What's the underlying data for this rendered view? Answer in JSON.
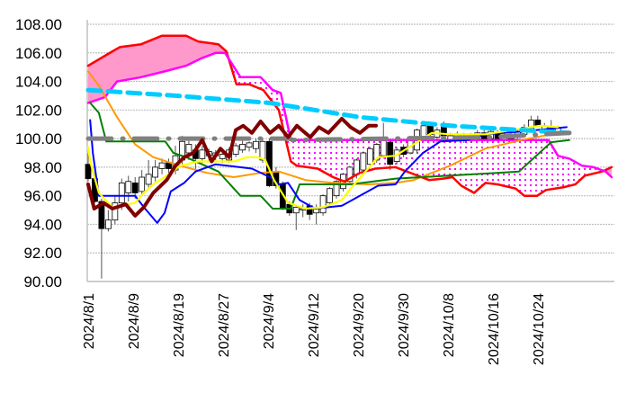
{
  "chart_data": {
    "type": "line",
    "title": "",
    "xlabel": "",
    "ylabel": "",
    "ylim": [
      90,
      108
    ],
    "xlim": [
      0,
      78.5
    ],
    "grid": true,
    "legend": "none",
    "y_ticks": [
      "90.00",
      "92.00",
      "94.00",
      "96.00",
      "98.00",
      "100.00",
      "102.00",
      "104.00",
      "106.00",
      "108.00"
    ],
    "y_tick_values": [
      90,
      92,
      94,
      96,
      98,
      100,
      102,
      104,
      106,
      108
    ],
    "x_tick_labels": [
      {
        "i": 0,
        "label": "2024/8/1"
      },
      {
        "i": 6.7,
        "label": "2024/8/9"
      },
      {
        "i": 13.4,
        "label": "2024/8/19"
      },
      {
        "i": 20.1,
        "label": "2024/8/27"
      },
      {
        "i": 26.8,
        "label": "2024/9/4"
      },
      {
        "i": 33.5,
        "label": "2024/9/12"
      },
      {
        "i": 40.2,
        "label": "2024/9/20"
      },
      {
        "i": 46.9,
        "label": "2024/9/30"
      },
      {
        "i": 53.6,
        "label": "2024/10/8"
      },
      {
        "i": 60.3,
        "label": "2024/10/16"
      },
      {
        "i": 67.0,
        "label": "2024/10/24"
      }
    ],
    "colors": {
      "senkou_a": "#ff0000",
      "senkou_b": "#ff00ff",
      "cloud_bull": "#ff99cc",
      "cloud_bear_dots": "#ff00ff",
      "tenkan": "#0000ff",
      "kijun": "#008000",
      "chikou": "#800000",
      "yellow": "#ffff00",
      "orange": "#ff9900",
      "cyan": "#00ccff",
      "gray": "#808080"
    },
    "candles": [
      [
        98.2,
        99.0,
        97.0,
        97.2
      ],
      [
        97.2,
        97.5,
        95.5,
        95.6
      ],
      [
        95.6,
        95.8,
        90.2,
        93.7
      ],
      [
        93.7,
        95.0,
        93.5,
        94.3
      ],
      [
        94.3,
        96.0,
        94.0,
        95.5
      ],
      [
        95.5,
        97.2,
        95.0,
        96.9
      ],
      [
        96.2,
        97.4,
        95.6,
        97.0
      ],
      [
        96.9,
        97.3,
        95.8,
        96.2
      ],
      [
        96.3,
        97.8,
        96.0,
        97.3
      ],
      [
        96.8,
        98.5,
        96.5,
        97.5
      ],
      [
        97.3,
        98.5,
        97.0,
        98.0
      ],
      [
        97.9,
        98.6,
        97.5,
        98.3
      ],
      [
        98.3,
        98.6,
        97.6,
        97.9
      ],
      [
        97.8,
        99.5,
        97.5,
        98.8
      ],
      [
        98.5,
        100.2,
        98.2,
        99.8
      ],
      [
        99.0,
        100.0,
        98.5,
        99.6
      ],
      [
        99.2,
        99.6,
        97.6,
        98.6
      ],
      [
        98.6,
        99.5,
        98.3,
        99.2
      ],
      [
        98.8,
        99.3,
        98.4,
        99.1
      ],
      [
        98.8,
        99.2,
        98.5,
        99.0
      ],
      [
        98.6,
        99.1,
        98.3,
        98.9
      ],
      [
        98.5,
        99.4,
        98.3,
        99.2
      ],
      [
        98.9,
        99.7,
        98.7,
        99.5
      ],
      [
        99.2,
        99.9,
        99.0,
        99.6
      ],
      [
        99.4,
        99.8,
        99.1,
        99.7
      ],
      [
        99.3,
        100.0,
        99.0,
        99.8
      ],
      [
        98.5,
        100.0,
        98.3,
        99.8
      ],
      [
        99.8,
        100.0,
        96.6,
        96.7
      ],
      [
        97.7,
        98.0,
        96.5,
        96.7
      ],
      [
        96.8,
        97.0,
        95.0,
        95.1
      ],
      [
        95.4,
        95.6,
        94.6,
        94.8
      ],
      [
        94.8,
        95.3,
        93.6,
        95.2
      ],
      [
        95.0,
        95.4,
        94.5,
        95.1
      ],
      [
        95.3,
        95.5,
        94.3,
        94.7
      ],
      [
        94.8,
        95.4,
        94.0,
        95.2
      ],
      [
        94.8,
        96.1,
        94.6,
        96.0
      ],
      [
        95.5,
        96.6,
        95.3,
        96.5
      ],
      [
        96.0,
        97.1,
        95.8,
        97.0
      ],
      [
        96.5,
        97.6,
        96.3,
        97.5
      ],
      [
        97.0,
        98.1,
        96.8,
        98.0
      ],
      [
        97.5,
        98.6,
        97.2,
        98.5
      ],
      [
        97.8,
        99.1,
        97.6,
        99.0
      ],
      [
        98.2,
        99.4,
        98.0,
        99.3
      ],
      [
        98.5,
        99.7,
        98.3,
        99.6
      ],
      [
        98.8,
        101.1,
        98.6,
        99.9
      ],
      [
        99.75,
        100.0,
        97.8,
        98.2
      ],
      [
        98.4,
        99.4,
        98.2,
        99.2
      ],
      [
        99.4,
        99.6,
        98.7,
        98.9
      ],
      [
        99.0,
        100.2,
        98.9,
        100.0
      ],
      [
        99.2,
        100.7,
        99.0,
        100.6
      ],
      [
        100.0,
        101.1,
        99.9,
        100.9
      ],
      [
        100.9,
        101.0,
        100.1,
        100.3
      ],
      [
        100.1,
        100.8,
        99.7,
        100.6
      ],
      [
        101.0,
        101.2,
        100.0,
        100.2
      ],
      [
        99.9,
        100.4,
        99.7,
        100.2
      ],
      [
        100.0,
        100.5,
        99.8,
        100.3
      ],
      [
        100.2,
        100.4,
        99.7,
        99.9
      ],
      [
        99.9,
        100.4,
        99.7,
        100.2
      ],
      [
        100.0,
        100.6,
        99.8,
        100.4
      ],
      [
        100.4,
        100.6,
        99.8,
        100.0
      ],
      [
        100.0,
        100.7,
        99.8,
        100.5
      ],
      [
        100.4,
        100.6,
        99.8,
        100.0
      ],
      [
        99.9,
        100.4,
        99.7,
        100.2
      ],
      [
        100.0,
        100.5,
        99.9,
        100.3
      ],
      [
        100.2,
        100.7,
        100.0,
        100.5
      ],
      [
        100.3,
        101.0,
        100.2,
        100.8
      ],
      [
        100.7,
        101.6,
        100.5,
        101.3
      ],
      [
        101.3,
        101.6,
        100.8,
        100.9
      ],
      [
        100.6,
        101.1,
        100.4,
        100.9
      ],
      [
        100.6,
        101.3,
        100.4,
        100.8
      ],
      [
        100.5,
        100.9,
        100.3,
        100.8
      ]
    ],
    "series": [
      {
        "name": "senkou_a",
        "color": "#ff0000",
        "width": 2.5,
        "points": [
          [
            0,
            105.1
          ],
          [
            2.5,
            105.8
          ],
          [
            4.7,
            106.4
          ],
          [
            7.9,
            106.6
          ],
          [
            11,
            107.2
          ],
          [
            14.6,
            107.2
          ],
          [
            16.4,
            106.8
          ],
          [
            19.4,
            106.6
          ],
          [
            20.6,
            106.1
          ],
          [
            22.1,
            103.8
          ],
          [
            24,
            103.8
          ],
          [
            26.1,
            103.4
          ],
          [
            28.4,
            102.0
          ],
          [
            30.2,
            98.4
          ],
          [
            31.1,
            98.1
          ],
          [
            34.2,
            97.9
          ],
          [
            36.5,
            97.3
          ],
          [
            38.2,
            97.0
          ],
          [
            40.5,
            97.6
          ],
          [
            42.8,
            97.9
          ],
          [
            45.8,
            98.0
          ],
          [
            50.8,
            97.1
          ],
          [
            52.9,
            97.2
          ],
          [
            54.3,
            97.3
          ],
          [
            55.6,
            96.7
          ],
          [
            57.5,
            96.2
          ],
          [
            59.2,
            96.9
          ],
          [
            61,
            96.8
          ],
          [
            63.7,
            96.5
          ],
          [
            65,
            96.0
          ],
          [
            66.9,
            96.0
          ],
          [
            68.2,
            96.4
          ],
          [
            70.9,
            96.6
          ],
          [
            72.6,
            96.8
          ],
          [
            74,
            97.4
          ],
          [
            76.6,
            97.7
          ],
          [
            78,
            98.0
          ]
        ]
      },
      {
        "name": "senkou_b",
        "color": "#ff00ff",
        "width": 2.5,
        "points": [
          [
            0,
            102.5
          ],
          [
            2.5,
            102.9
          ],
          [
            4.3,
            104.0
          ],
          [
            7.9,
            104.3
          ],
          [
            11.4,
            104.7
          ],
          [
            14.6,
            105.1
          ],
          [
            16.8,
            105.6
          ],
          [
            19,
            106.0
          ],
          [
            20.4,
            106.0
          ],
          [
            22.7,
            104.3
          ],
          [
            25.7,
            104.3
          ],
          [
            27.5,
            103.4
          ],
          [
            28.7,
            103.2
          ],
          [
            30.2,
            99.9
          ],
          [
            68.6,
            99.9
          ],
          [
            70,
            98.8
          ],
          [
            71.7,
            98.6
          ],
          [
            73.6,
            98.1
          ],
          [
            75.3,
            98.0
          ],
          [
            77.1,
            97.7
          ],
          [
            78,
            97.3
          ]
        ]
      },
      {
        "name": "orange",
        "color": "#ff9900",
        "width": 2,
        "points": [
          [
            0,
            104.7
          ],
          [
            1.6,
            103.7
          ],
          [
            4.3,
            101.5
          ],
          [
            7,
            99.6
          ],
          [
            9.7,
            98.7
          ],
          [
            13.7,
            98.1
          ],
          [
            17.7,
            97.6
          ],
          [
            21.7,
            97.3
          ],
          [
            25.7,
            97.6
          ],
          [
            28.4,
            97.7
          ],
          [
            32.4,
            97.1
          ],
          [
            36.5,
            96.9
          ],
          [
            41.8,
            96.8
          ],
          [
            45.8,
            96.9
          ],
          [
            48.5,
            97.1
          ],
          [
            53.9,
            98.1
          ],
          [
            59.2,
            99.3
          ],
          [
            64.6,
            99.9
          ],
          [
            70,
            100.4
          ]
        ]
      },
      {
        "name": "kijun",
        "color": "#008000",
        "width": 2,
        "points": [
          [
            0.3,
            102.5
          ],
          [
            1.6,
            101.8
          ],
          [
            2.7,
            99.8
          ],
          [
            11.5,
            99.8
          ],
          [
            12.7,
            99.0
          ],
          [
            14.6,
            98.7
          ],
          [
            19.4,
            97.7
          ],
          [
            22.7,
            96.0
          ],
          [
            25.7,
            96.0
          ],
          [
            27.5,
            95.1
          ],
          [
            30.2,
            95.1
          ],
          [
            31.5,
            96.8
          ],
          [
            39.1,
            96.8
          ],
          [
            45.8,
            97.2
          ],
          [
            61,
            97.6
          ],
          [
            64.2,
            97.7
          ],
          [
            69,
            99.75
          ],
          [
            71.7,
            99.9
          ]
        ]
      },
      {
        "name": "tenkan",
        "color": "#0000ff",
        "width": 2,
        "points": [
          [
            0.3,
            101.3
          ],
          [
            0.7,
            99.0
          ],
          [
            1.6,
            96.0
          ],
          [
            7,
            96.0
          ],
          [
            8.3,
            95.2
          ],
          [
            10.3,
            94.1
          ],
          [
            11.4,
            94.8
          ],
          [
            12.3,
            96.3
          ],
          [
            14.3,
            96.9
          ],
          [
            16,
            97.7
          ],
          [
            19,
            98.2
          ],
          [
            24.4,
            97.9
          ],
          [
            27.1,
            97.3
          ],
          [
            28.4,
            96.8
          ],
          [
            29.8,
            96.9
          ],
          [
            31.5,
            95.7
          ],
          [
            33.8,
            95.1
          ],
          [
            37.8,
            95.3
          ],
          [
            43.2,
            96.7
          ],
          [
            45.8,
            96.8
          ],
          [
            47.2,
            97.7
          ],
          [
            49.9,
            99.0
          ],
          [
            52.5,
            99.8
          ],
          [
            56.6,
            99.9
          ],
          [
            59.2,
            100.3
          ],
          [
            64.6,
            100.5
          ],
          [
            71.3,
            100.8
          ]
        ]
      },
      {
        "name": "yellow",
        "color": "#ffff00",
        "width": 2.2,
        "points": [
          [
            0,
            99.4
          ],
          [
            0.3,
            98.4
          ],
          [
            1.6,
            96.2
          ],
          [
            3.6,
            95.2
          ],
          [
            7,
            95.5
          ],
          [
            8.3,
            96.2
          ],
          [
            9.7,
            96.8
          ],
          [
            11.7,
            97.4
          ],
          [
            13.7,
            98.1
          ],
          [
            16.4,
            98.4
          ],
          [
            21.7,
            98.4
          ],
          [
            23.7,
            98.7
          ],
          [
            25.3,
            98.7
          ],
          [
            26.4,
            98.5
          ],
          [
            27.7,
            97.1
          ],
          [
            29.8,
            95.5
          ],
          [
            32.4,
            95.1
          ],
          [
            35.1,
            95.2
          ],
          [
            37.8,
            95.7
          ],
          [
            39.1,
            96.5
          ],
          [
            43.2,
            98.7
          ],
          [
            45.8,
            98.8
          ],
          [
            48.5,
            99.6
          ],
          [
            51.2,
            100.4
          ],
          [
            53.9,
            100.3
          ],
          [
            59.2,
            100.3
          ],
          [
            64.6,
            100.7
          ],
          [
            67.3,
            100.9
          ],
          [
            70,
            100.8
          ]
        ]
      },
      {
        "name": "cyan",
        "color": "#00ccff",
        "width": 5,
        "dash": "14,8",
        "points": [
          [
            0,
            103.4
          ],
          [
            13,
            103.0
          ],
          [
            27,
            102.5
          ],
          [
            40.5,
            101.5
          ],
          [
            54,
            100.9
          ],
          [
            71.7,
            100.4
          ]
        ]
      },
      {
        "name": "gray",
        "color": "#808080",
        "width": 5,
        "dash": "26,12,1,12",
        "points": [
          [
            0,
            100.0
          ],
          [
            30,
            100.0
          ],
          [
            30.5,
            99.9
          ],
          [
            45,
            100.0
          ],
          [
            60,
            100.1
          ],
          [
            71.7,
            100.4
          ]
        ]
      },
      {
        "name": "chikou",
        "color": "#800000",
        "width": 4,
        "points": [
          [
            0,
            96.8
          ],
          [
            0.9,
            95.1
          ],
          [
            2.3,
            95.5
          ],
          [
            3.6,
            95.1
          ],
          [
            5.6,
            95.4
          ],
          [
            7,
            94.6
          ],
          [
            8.3,
            95.2
          ],
          [
            9.7,
            96.2
          ],
          [
            11.7,
            97.1
          ],
          [
            13,
            98.1
          ],
          [
            14.3,
            98.7
          ],
          [
            15.7,
            99.0
          ],
          [
            17,
            99.9
          ],
          [
            18.4,
            98.4
          ],
          [
            19.7,
            99.3
          ],
          [
            21,
            98.7
          ],
          [
            22,
            100.6
          ],
          [
            23.1,
            100.9
          ],
          [
            24.4,
            100.4
          ],
          [
            25.7,
            101.2
          ],
          [
            27.1,
            100.4
          ],
          [
            28.4,
            100.9
          ],
          [
            29.8,
            100.1
          ],
          [
            31.1,
            100.9
          ],
          [
            33.1,
            100.1
          ],
          [
            34.4,
            100.8
          ],
          [
            35.8,
            100.4
          ],
          [
            37.8,
            101.4
          ],
          [
            39.1,
            100.8
          ],
          [
            40.5,
            100.4
          ],
          [
            41.8,
            100.9
          ],
          [
            42.9,
            100.9
          ]
        ]
      }
    ]
  }
}
